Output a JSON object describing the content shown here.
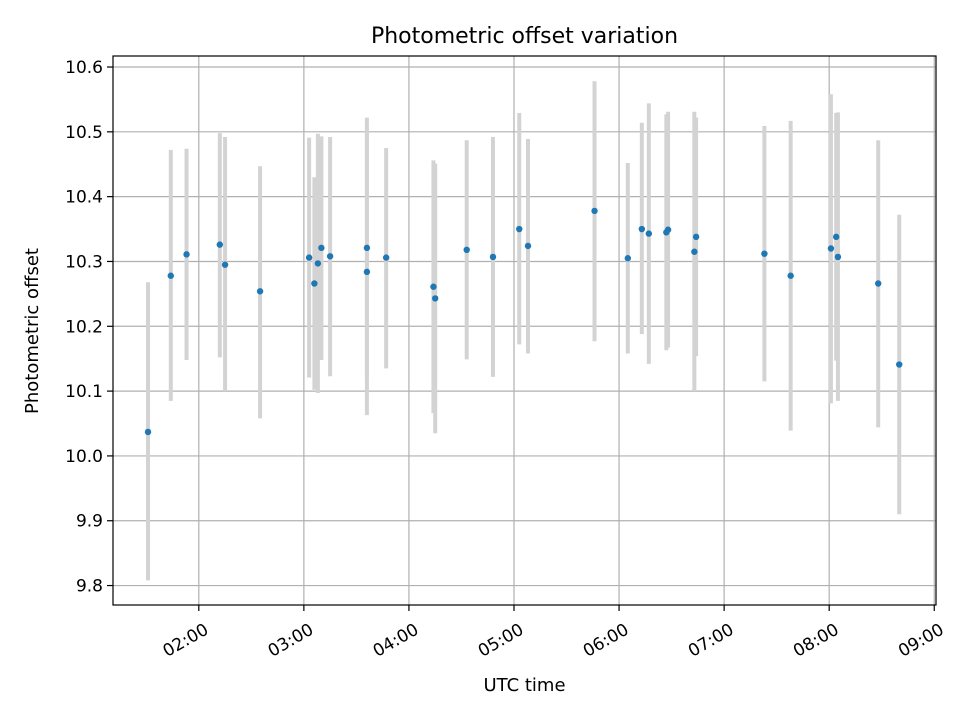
{
  "chart_data": {
    "type": "scatter",
    "title": "Photometric offset variation",
    "xlabel": "UTC time",
    "ylabel": "Photometric offset",
    "xlim": [
      "01:11",
      "09:01"
    ],
    "ylim": [
      9.77,
      10.617
    ],
    "grid": true,
    "x_ticks": [
      "02:00",
      "03:00",
      "04:00",
      "05:00",
      "06:00",
      "07:00",
      "08:00",
      "09:00"
    ],
    "y_ticks": [
      "9.8",
      "9.9",
      "10.0",
      "10.1",
      "10.2",
      "10.3",
      "10.4",
      "10.5",
      "10.6"
    ],
    "colors": {
      "points": "#1f77b4",
      "errorbars": "#d3d3d3",
      "grid": "#b0b0b0"
    },
    "series": [
      {
        "points": [
          {
            "x": "01:31",
            "y": 10.037,
            "ylo": 9.808,
            "yhi": 10.268
          },
          {
            "x": "01:44",
            "y": 10.278,
            "ylo": 10.085,
            "yhi": 10.472
          },
          {
            "x": "01:53",
            "y": 10.311,
            "ylo": 10.148,
            "yhi": 10.474
          },
          {
            "x": "02:12",
            "y": 10.326,
            "ylo": 10.152,
            "yhi": 10.498
          },
          {
            "x": "02:15",
            "y": 10.295,
            "ylo": 10.1,
            "yhi": 10.492
          },
          {
            "x": "02:35",
            "y": 10.254,
            "ylo": 10.058,
            "yhi": 10.447
          },
          {
            "x": "03:03",
            "y": 10.306,
            "ylo": 10.121,
            "yhi": 10.491
          },
          {
            "x": "03:06",
            "y": 10.266,
            "ylo": 10.102,
            "yhi": 10.43
          },
          {
            "x": "03:08",
            "y": 10.297,
            "ylo": 10.097,
            "yhi": 10.497
          },
          {
            "x": "03:10",
            "y": 10.321,
            "ylo": 10.148,
            "yhi": 10.493
          },
          {
            "x": "03:15",
            "y": 10.308,
            "ylo": 10.123,
            "yhi": 10.492
          },
          {
            "x": "03:36",
            "y": 10.284,
            "ylo": 10.063,
            "yhi": 10.502
          },
          {
            "x": "03:36",
            "y": 10.321,
            "ylo": 10.121,
            "yhi": 10.522
          },
          {
            "x": "03:47",
            "y": 10.306,
            "ylo": 10.135,
            "yhi": 10.475
          },
          {
            "x": "04:14",
            "y": 10.261,
            "ylo": 10.066,
            "yhi": 10.456
          },
          {
            "x": "04:15",
            "y": 10.243,
            "ylo": 10.035,
            "yhi": 10.451
          },
          {
            "x": "04:33",
            "y": 10.318,
            "ylo": 10.149,
            "yhi": 10.487
          },
          {
            "x": "04:48",
            "y": 10.307,
            "ylo": 10.122,
            "yhi": 10.492
          },
          {
            "x": "05:03",
            "y": 10.35,
            "ylo": 10.172,
            "yhi": 10.529
          },
          {
            "x": "05:08",
            "y": 10.324,
            "ylo": 10.158,
            "yhi": 10.489
          },
          {
            "x": "05:46",
            "y": 10.378,
            "ylo": 10.177,
            "yhi": 10.578
          },
          {
            "x": "06:05",
            "y": 10.305,
            "ylo": 10.158,
            "yhi": 10.452
          },
          {
            "x": "06:13",
            "y": 10.35,
            "ylo": 10.188,
            "yhi": 10.514
          },
          {
            "x": "06:17",
            "y": 10.343,
            "ylo": 10.142,
            "yhi": 10.544
          },
          {
            "x": "06:27",
            "y": 10.345,
            "ylo": 10.163,
            "yhi": 10.527
          },
          {
            "x": "06:28",
            "y": 10.349,
            "ylo": 10.167,
            "yhi": 10.531
          },
          {
            "x": "06:43",
            "y": 10.315,
            "ylo": 10.1,
            "yhi": 10.531
          },
          {
            "x": "06:44",
            "y": 10.338,
            "ylo": 10.154,
            "yhi": 10.522
          },
          {
            "x": "07:23",
            "y": 10.312,
            "ylo": 10.115,
            "yhi": 10.509
          },
          {
            "x": "07:38",
            "y": 10.278,
            "ylo": 10.039,
            "yhi": 10.517
          },
          {
            "x": "08:01",
            "y": 10.32,
            "ylo": 10.081,
            "yhi": 10.558
          },
          {
            "x": "08:04",
            "y": 10.338,
            "ylo": 10.147,
            "yhi": 10.529
          },
          {
            "x": "08:05",
            "y": 10.307,
            "ylo": 10.085,
            "yhi": 10.53
          },
          {
            "x": "08:28",
            "y": 10.266,
            "ylo": 10.044,
            "yhi": 10.487
          },
          {
            "x": "08:40",
            "y": 10.141,
            "ylo": 9.91,
            "yhi": 10.372
          }
        ]
      }
    ]
  }
}
